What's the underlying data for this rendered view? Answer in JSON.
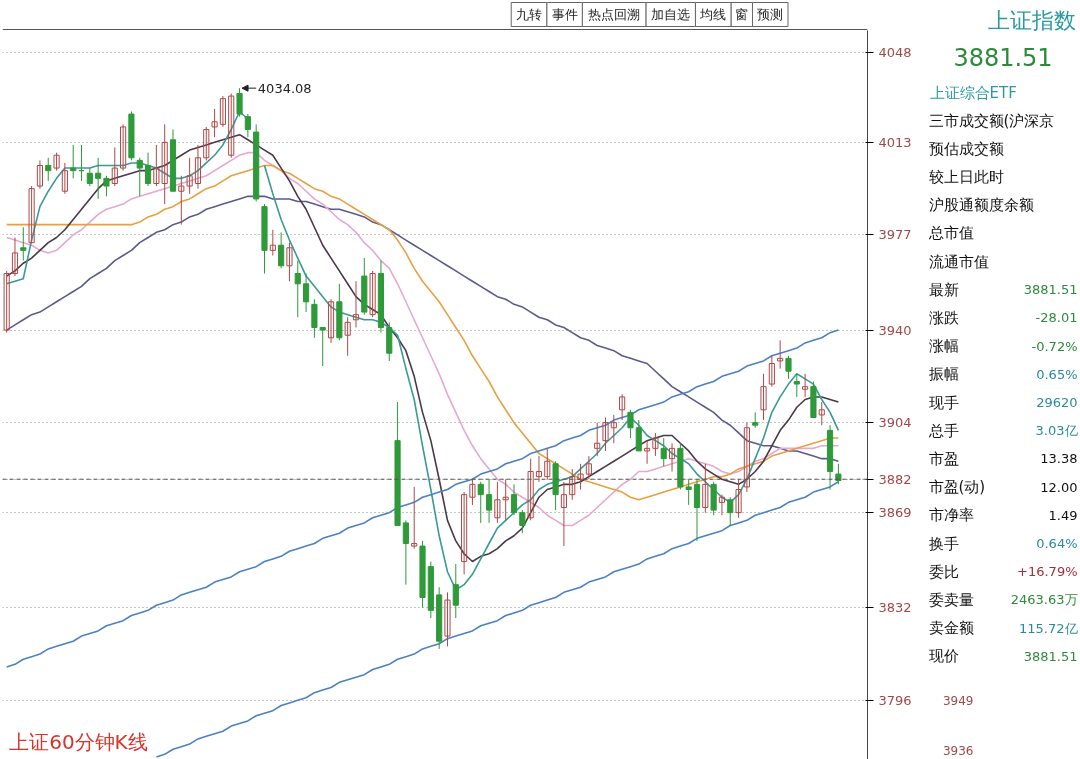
{
  "chart_data": [
    {
      "type": "candlestick",
      "categories": [
        null,
        null,
        null,
        null,
        null,
        null,
        null,
        null,
        null,
        null,
        null,
        null,
        null,
        null,
        null,
        null,
        null,
        null,
        null,
        null,
        null,
        null,
        null,
        null,
        null,
        null,
        null,
        null,
        null,
        null,
        null,
        null,
        null,
        null,
        null,
        null,
        null,
        null,
        null,
        null,
        null,
        null,
        null,
        null,
        null,
        null,
        null,
        null,
        null,
        null,
        null,
        null,
        null,
        null,
        null,
        null,
        null,
        null,
        null,
        null,
        null,
        null,
        null,
        null,
        null,
        null,
        null,
        null,
        null,
        null,
        null,
        null,
        null,
        null,
        null,
        null,
        null,
        null,
        null,
        null,
        null,
        null,
        null,
        null,
        null,
        null,
        null,
        null,
        null,
        null,
        null,
        null,
        null,
        null,
        null,
        null,
        null,
        null,
        null,
        null,
        null
      ],
      "ohlc": [
        [
          3940,
          3963,
          3939,
          3962
        ],
        [
          3962,
          3976,
          3961,
          3970
        ],
        [
          3972,
          3980,
          3967,
          3971
        ],
        [
          3974,
          3996,
          3974,
          3995
        ],
        [
          3996,
          4006,
          3995,
          4004
        ],
        [
          4004,
          4007,
          3998,
          4002
        ],
        [
          4003,
          4009,
          4002,
          4008
        ],
        [
          3994,
          4005,
          3993,
          4002
        ],
        [
          4003,
          4012,
          3999,
          4002
        ],
        [
          4002,
          4012,
          3998,
          4002
        ],
        [
          4001,
          4003,
          3996,
          3997
        ],
        [
          4001,
          4007,
          3991,
          3999
        ],
        [
          3999,
          4000,
          3992,
          3996
        ],
        [
          3997,
          4011,
          3996,
          4003
        ],
        [
          4003,
          4020,
          4002,
          4019
        ],
        [
          4024,
          4025,
          4006,
          4007
        ],
        [
          4006,
          4007,
          3992,
          4003
        ],
        [
          4004,
          4009,
          3996,
          3997
        ],
        [
          3997,
          4012,
          3996,
          4003
        ],
        [
          3997,
          4020,
          3989,
          4013
        ],
        [
          4014,
          4018,
          3994,
          3994
        ],
        [
          3994,
          4000,
          3981,
          3996
        ],
        [
          3996,
          4007,
          3993,
          4000
        ],
        [
          3997,
          4012,
          3995,
          4007
        ],
        [
          4007,
          4019,
          4006,
          4018
        ],
        [
          4019,
          4026,
          4015,
          4021
        ],
        [
          4020,
          4031,
          4019,
          4030
        ],
        [
          4008,
          4032,
          4007,
          4031
        ],
        [
          4032,
          4034.08,
          4023,
          4024
        ],
        [
          4023,
          4024,
          4015,
          4018
        ],
        [
          4017,
          4020,
          3990,
          3991
        ],
        [
          3988,
          3989,
          3962,
          3971
        ],
        [
          3971,
          3979,
          3969,
          3973
        ],
        [
          3973,
          3978,
          3964,
          3965
        ],
        [
          3965,
          3974,
          3959,
          3972
        ],
        [
          3962,
          3967,
          3945,
          3958
        ],
        [
          3958,
          3962,
          3947,
          3951
        ],
        [
          3950,
          3952,
          3937,
          3941
        ],
        [
          3941,
          3941,
          3926,
          3940
        ],
        [
          3937,
          3952,
          3935,
          3951
        ],
        [
          3951,
          3958,
          3936,
          3937
        ],
        [
          3938,
          3945,
          3930,
          3943
        ],
        [
          3944,
          3959,
          3941,
          3946
        ],
        [
          3961,
          3968,
          3946,
          3947
        ],
        [
          3946,
          3963,
          3945,
          3962
        ],
        [
          3962,
          3967,
          3939,
          3941
        ],
        [
          3941,
          3943,
          3928,
          3931
        ],
        [
          3897,
          3912,
          3864,
          3864
        ],
        [
          3865,
          3866,
          3841,
          3857
        ],
        [
          3856,
          3879,
          3855,
          3857
        ],
        [
          3856,
          3858,
          3832,
          3836
        ],
        [
          3848,
          3850,
          3828,
          3831
        ],
        [
          3837,
          3840,
          3816,
          3819
        ],
        [
          3821,
          3838,
          3817,
          3835
        ],
        [
          3841,
          3849,
          3828,
          3833
        ],
        [
          3850,
          3877,
          3845,
          3876
        ],
        [
          3875,
          3882,
          3872,
          3880
        ],
        [
          3880,
          3881,
          3865,
          3876
        ],
        [
          3876,
          3882,
          3865,
          3870
        ],
        [
          3867,
          3881,
          3865,
          3874
        ],
        [
          3874,
          3882,
          3866,
          3875
        ],
        [
          3876,
          3880,
          3868,
          3869
        ],
        [
          3869,
          3870,
          3861,
          3864
        ],
        [
          3867,
          3890,
          3866,
          3885
        ],
        [
          3883,
          3891,
          3881,
          3885
        ],
        [
          3883,
          3894,
          3882,
          3889
        ],
        [
          3888,
          3889,
          3870,
          3876
        ],
        [
          3871,
          3881,
          3856,
          3876
        ],
        [
          3876,
          3886,
          3874,
          3883
        ],
        [
          3882,
          3888,
          3878,
          3884
        ],
        [
          3884,
          3891,
          3882,
          3888
        ],
        [
          3894,
          3904,
          3891,
          3896
        ],
        [
          3897,
          3906,
          3893,
          3904
        ],
        [
          3902,
          3907,
          3896,
          3904
        ],
        [
          3909,
          3915,
          3905,
          3914
        ],
        [
          3908,
          3909,
          3898,
          3902
        ],
        [
          3902,
          3905,
          3893,
          3893
        ],
        [
          3893,
          3897,
          3888,
          3894
        ],
        [
          3894,
          3900,
          3891,
          3898
        ],
        [
          3894,
          3898,
          3887,
          3890
        ],
        [
          3890,
          3896,
          3885,
          3894
        ],
        [
          3894,
          3896,
          3878,
          3879
        ],
        [
          3879,
          3882,
          3872,
          3878
        ],
        [
          3880,
          3882,
          3858,
          3871
        ],
        [
          3871,
          3888,
          3869,
          3880
        ],
        [
          3880,
          3881,
          3868,
          3870
        ],
        [
          3873,
          3876,
          3868,
          3875
        ],
        [
          3874,
          3875,
          3864,
          3869
        ],
        [
          3869,
          3882,
          3867,
          3878
        ],
        [
          3879,
          3904,
          3877,
          3902
        ],
        [
          3904,
          3908,
          3902,
          3903
        ],
        [
          3909,
          3923,
          3905,
          3918
        ],
        [
          3919,
          3930,
          3918,
          3927
        ],
        [
          3928,
          3936,
          3925,
          3929
        ],
        [
          3929,
          3930,
          3921,
          3924
        ],
        [
          3920,
          3923,
          3914,
          3919
        ],
        [
          3917,
          3923,
          3914,
          3918
        ],
        [
          3918,
          3920,
          3906,
          3906
        ],
        [
          3907,
          3912,
          3903,
          3909
        ],
        [
          3901,
          3903,
          3878,
          3885
        ],
        [
          3884,
          3888,
          3880,
          3881.51
        ]
      ],
      "colors": [
        "#b04848",
        "#b04848",
        "#2e9a3a",
        "#b04848",
        "#b04848",
        "#2e9a3a",
        "#b04848",
        "#b04848",
        "#2e9a3a",
        "#2e9a3a",
        "#2e9a3a",
        "#2e9a3a",
        "#2e9a3a",
        "#b04848",
        "#b04848",
        "#2e9a3a",
        "#2e9a3a",
        "#2e9a3a",
        "#b04848",
        "#b04848",
        "#2e9a3a",
        "#b04848",
        "#b04848",
        "#b04848",
        "#b04848",
        "#b04848",
        "#b04848",
        "#b04848",
        "#2e9a3a",
        "#2e9a3a",
        "#2e9a3a",
        "#2e9a3a",
        "#b04848",
        "#2e9a3a",
        "#b04848",
        "#2e9a3a",
        "#2e9a3a",
        "#2e9a3a",
        "#2e9a3a",
        "#b04848",
        "#2e9a3a",
        "#b04848",
        "#b04848",
        "#2e9a3a",
        "#b04848",
        "#2e9a3a",
        "#2e9a3a",
        "#2e9a3a",
        "#2e9a3a",
        "#b04848",
        "#2e9a3a",
        "#2e9a3a",
        "#2e9a3a",
        "#b04848",
        "#2e9a3a",
        "#b04848",
        "#b04848",
        "#2e9a3a",
        "#2e9a3a",
        "#b04848",
        "#b04848",
        "#2e9a3a",
        "#2e9a3a",
        "#b04848",
        "#b04848",
        "#b04848",
        "#2e9a3a",
        "#b04848",
        "#b04848",
        "#b04848",
        "#b04848",
        "#b04848",
        "#b04848",
        "#b04848",
        "#b04848",
        "#2e9a3a",
        "#2e9a3a",
        "#b04848",
        "#b04848",
        "#2e9a3a",
        "#b04848",
        "#2e9a3a",
        "#2e9a3a",
        "#2e9a3a",
        "#b04848",
        "#2e9a3a",
        "#b04848",
        "#2e9a3a",
        "#b04848",
        "#b04848",
        "#2e9a3a",
        "#b04848",
        "#b04848",
        "#b04848",
        "#2e9a3a",
        "#2e9a3a",
        "#b04848",
        "#2e9a3a",
        "#b04848",
        "#2e9a3a",
        "#2e9a3a"
      ],
      "series": [
        {
          "type": "line",
          "color": "#5a5a8e",
          "values": [
            3940,
            3942,
            3944,
            3946,
            3947,
            3949,
            3951,
            3953,
            3955,
            3957,
            3960,
            3962,
            3964,
            3967,
            3969,
            3971,
            3974,
            3976,
            3978,
            3979,
            3981,
            3982,
            3984,
            3985,
            3987,
            3988,
            3989,
            3990,
            3991,
            3992,
            3992,
            3992,
            3991,
            3991,
            3991,
            3990,
            3990,
            3989,
            3988,
            3987,
            3987,
            3986,
            3985,
            3984,
            3982,
            3981,
            3979,
            3977,
            3975,
            3973,
            3971,
            3969,
            3967,
            3965,
            3963,
            3961,
            3959,
            3957,
            3955,
            3953,
            3952,
            3950,
            3949,
            3947,
            3945,
            3944,
            3942,
            3941,
            3939,
            3937,
            3936,
            3934,
            3933,
            3932,
            3930,
            3929,
            3928,
            3927,
            3924,
            3921,
            3918,
            3916,
            3914,
            3912,
            3910,
            3908,
            3905,
            3903,
            3900,
            3897,
            3896,
            3895,
            3895,
            3894,
            3893,
            3893,
            3892,
            3891,
            3890,
            3890,
            3889
          ]
        },
        {
          "type": "line",
          "color": "#e6a8cf",
          "values": [
            3976,
            3975,
            3974,
            3973,
            3971,
            3970,
            3971,
            3974,
            3977,
            3979,
            3982,
            3985,
            3987,
            3988,
            3989,
            3991,
            3992,
            3993,
            3994,
            3995,
            3996,
            3997,
            3998,
            3999,
            4000,
            4002,
            4004,
            4006,
            4008,
            4009,
            4009,
            4006,
            4004,
            4002,
            3999,
            3997,
            3994,
            3991,
            3989,
            3986,
            3983,
            3981,
            3978,
            3974,
            3971,
            3967,
            3964,
            3958,
            3951,
            3944,
            3937,
            3930,
            3923,
            3915,
            3908,
            3901,
            3895,
            3890,
            3886,
            3882,
            3880,
            3877,
            3875,
            3873,
            3871,
            3868,
            3866,
            3864,
            3864,
            3866,
            3868,
            3871,
            3874,
            3877,
            3880,
            3882,
            3885,
            3885,
            3886,
            3887,
            3888,
            3889,
            3890,
            3889,
            3888,
            3887,
            3885,
            3884,
            3885,
            3887,
            3889,
            3890,
            3892,
            3894,
            3894,
            3894,
            3894,
            3894,
            3895,
            3895,
            3895
          ]
        },
        {
          "type": "line",
          "color": "#e8a040",
          "values": [
            3981,
            3981,
            3981,
            3981,
            3981,
            3981,
            3981,
            3981,
            3981,
            3981,
            3981,
            3981,
            3981,
            3981,
            3981,
            3981,
            3982,
            3984,
            3985,
            3987,
            3988,
            3990,
            3991,
            3993,
            3995,
            3996,
            3998,
            4000,
            4001,
            4002,
            4003,
            4004,
            4004,
            4002,
            4001,
            3999,
            3997,
            3995,
            3994,
            3992,
            3991,
            3989,
            3987,
            3985,
            3983,
            3981,
            3979,
            3975,
            3970,
            3964,
            3959,
            3955,
            3951,
            3946,
            3941,
            3936,
            3930,
            3925,
            3920,
            3914,
            3909,
            3904,
            3900,
            3896,
            3892,
            3890,
            3888,
            3886,
            3884,
            3882,
            3881,
            3880,
            3879,
            3878,
            3877,
            3875,
            3874,
            3875,
            3876,
            3877,
            3878,
            3879,
            3880,
            3881,
            3882,
            3883,
            3883,
            3884,
            3886,
            3887,
            3888,
            3889,
            3891,
            3892,
            3893,
            3894,
            3895,
            3896,
            3897,
            3898,
            3898
          ]
        },
        {
          "type": "line",
          "color": "#4a3848",
          "values": [
            3961,
            3963,
            3966,
            3968,
            3971,
            3974,
            3976,
            3979,
            3983,
            3987,
            3991,
            3995,
            3998,
            3999,
            4000,
            4001,
            4002,
            4002,
            4003,
            4004,
            4006,
            4008,
            4010,
            4011,
            4012,
            4013,
            4014,
            4015,
            4016,
            4014,
            4012,
            4010,
            4008,
            4003,
            3998,
            3992,
            3987,
            3980,
            3973,
            3968,
            3963,
            3958,
            3953,
            3950,
            3948,
            3946,
            3941,
            3937,
            3932,
            3922,
            3908,
            3897,
            3882,
            3866,
            3858,
            3853,
            3850,
            3852,
            3853,
            3855,
            3858,
            3860,
            3863,
            3869,
            3875,
            3878,
            3879,
            3880,
            3880,
            3881,
            3883,
            3885,
            3887,
            3889,
            3891,
            3893,
            3895,
            3897,
            3898,
            3899,
            3899,
            3896,
            3893,
            3889,
            3886,
            3884,
            3882,
            3881,
            3880,
            3882,
            3885,
            3889,
            3895,
            3901,
            3905,
            3910,
            3913,
            3914,
            3914,
            3913,
            3912
          ]
        },
        {
          "type": "line",
          "color": "#3a9a96",
          "values": [
            3958,
            3959,
            3960,
            3975,
            3988,
            3994,
            3999,
            4003,
            4003,
            4003,
            4003,
            4004,
            4004,
            4004,
            4004,
            4005,
            4005,
            4004,
            4003,
            4001,
            3999,
            3999,
            4000,
            4002,
            4005,
            4008,
            4012,
            4018,
            4025,
            4022,
            null,
            4004,
            3993,
            3983,
            3975,
            3968,
            3961,
            3957,
            3953,
            3949,
            3947,
            3946,
            3945,
            3944,
            3944,
            3943,
            3941,
            3938,
            3925,
            3913,
            3895,
            3878,
            3860,
            3846,
            3839,
            3841,
            3845,
            3851,
            3857,
            3863,
            3866,
            3869,
            3872,
            3874,
            3878,
            3880,
            3881,
            3882,
            3883,
            3886,
            3889,
            3892,
            3896,
            3899,
            3902,
            3906,
            3903,
            3899,
            3897,
            3895,
            3892,
            3890,
            3888,
            3884,
            3881,
            3878,
            3875,
            3873,
            3876,
            3882,
            3890,
            3898,
            3908,
            3914,
            3919,
            3923,
            3921,
            3919,
            3913,
            3908,
            3901
          ]
        },
        {
          "type": "line",
          "color": "#4a80c4",
          "values": [
            3809,
            3810,
            3812,
            3813,
            3814,
            3816,
            3817,
            3818,
            3819,
            3821,
            3822,
            3823,
            3825,
            3826,
            3827,
            3829,
            3830,
            3831,
            3833,
            3834,
            3835,
            3837,
            3838,
            3839,
            3840,
            3842,
            3843,
            3844,
            3846,
            3847,
            3848,
            3850,
            3851,
            3852,
            3854,
            3855,
            3856,
            3857,
            3859,
            3860,
            3861,
            3863,
            3864,
            3865,
            3867,
            3868,
            3869,
            3871,
            3872,
            3873,
            3875,
            3876,
            3877,
            3878,
            3880,
            3881,
            3882,
            3884,
            3885,
            3886,
            3888,
            3889,
            3890,
            3892,
            3893,
            3894,
            3895,
            3897,
            3898,
            3899,
            3901,
            3902,
            3903,
            3905,
            3906,
            3907,
            3909,
            3910,
            3911,
            3912,
            3914,
            3915,
            3916,
            3918,
            3919,
            3920,
            3922,
            3923,
            3924,
            3926,
            3927,
            3928,
            3930,
            3931,
            3932,
            3933,
            3935,
            3936,
            3937,
            3939,
            3940
          ]
        },
        {
          "type": "line",
          "color": "#4a80c4",
          "values": [
            null,
            null,
            null,
            null,
            null,
            null,
            null,
            null,
            null,
            null,
            null,
            null,
            null,
            null,
            null,
            null,
            null,
            null,
            3774,
            3775,
            3777,
            3778,
            3779,
            3781,
            3782,
            3783,
            3784,
            3786,
            3787,
            3788,
            3790,
            3791,
            3792,
            3794,
            3795,
            3796,
            3797,
            3799,
            3800,
            3801,
            3803,
            3804,
            3805,
            3806,
            3808,
            3809,
            3810,
            3812,
            3813,
            3814,
            3816,
            3817,
            3818,
            3820,
            3821,
            3822,
            3823,
            3825,
            3826,
            3827,
            3829,
            3830,
            3831,
            3833,
            3834,
            3835,
            3836,
            3838,
            3839,
            3840,
            3842,
            3843,
            3844,
            3846,
            3847,
            3848,
            3849,
            3851,
            3852,
            3853,
            3855,
            3856,
            3857,
            3859,
            3860,
            3861,
            3862,
            3864,
            3865,
            3866,
            3868,
            3869,
            3870,
            3871,
            3873,
            3874,
            3875,
            3877,
            3878,
            3879,
            3881
          ]
        }
      ],
      "ylim": [
        3773,
        4056.5
      ],
      "yticks": [
        3796,
        3832,
        3869,
        3882,
        3904,
        3940,
        3977,
        4013,
        4048
      ],
      "grid": "y",
      "tick_labels": "y",
      "ref_lines": [
        {
          "axis": "y",
          "value": 3882,
          "color": "#555555",
          "line_style": "dashed"
        }
      ],
      "annotations": [
        "4034.08",
        "上证60分钟K线",
        "九转",
        "事件",
        "热点回溯",
        "加自选",
        "均线",
        "窗",
        "预测"
      ]
    },
    {
      "type": "other",
      "title": "上证指数",
      "subtitle": "3881.51",
      "categories": [
        "三市成交额(沪深京",
        "预估成交额",
        "较上日此时",
        "沪股通额度余额",
        "总市值",
        "流通市值",
        "最新",
        "涨跌",
        "涨幅",
        "振幅",
        "现手",
        "总手",
        "市盈",
        "市盈(动)",
        "市净率",
        "换手",
        "委比",
        "委卖量",
        "卖金额",
        "现价"
      ],
      "value_labels": [
        null,
        null,
        null,
        null,
        null,
        null,
        "3881.51",
        "-28.01",
        "-0.72%",
        "0.65%",
        "29620",
        "3.03亿",
        "13.38",
        "12.00",
        "1.49",
        "0.64%",
        "+16.79%",
        "2463.63万",
        "115.72亿",
        "3881.51"
      ],
      "colors": [
        null,
        null,
        null,
        null,
        null,
        null,
        "#2e8a3a",
        "#2e8a3a",
        "#2e8a3a",
        "#2a8a9a",
        "#2a8a9a",
        "#2a8a9a",
        "#111111",
        "#111111",
        "#111111",
        "#2a8a9a",
        "#a03040",
        "#2e8a3a",
        "#2a8a9a",
        "#2e8a3a"
      ],
      "annotations": [
        "上证综合ETF",
        "3949",
        "3936"
      ]
    }
  ]
}
